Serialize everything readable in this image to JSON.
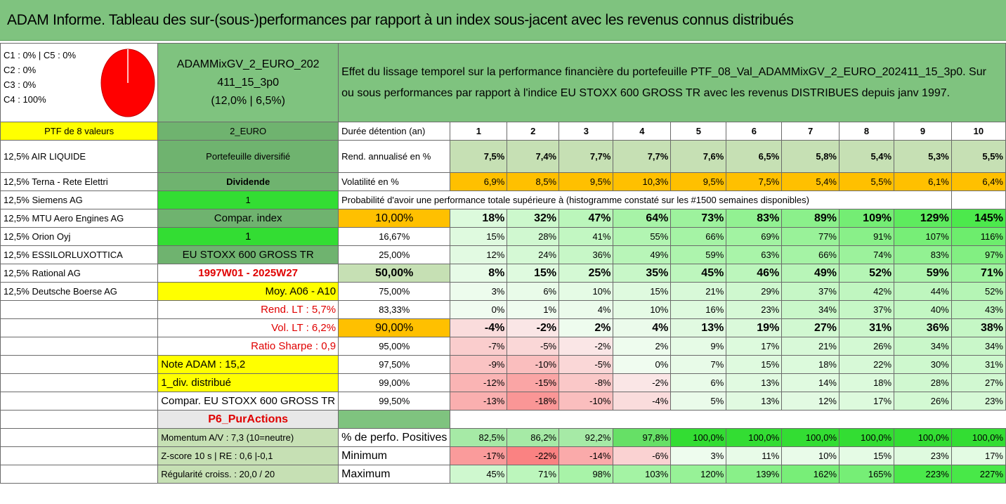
{
  "title": "ADAM Informe. Tableau des sur-(sous-)performances par rapport à un index sous-jacent avec les revenus connus distribués",
  "allocation": {
    "lines": [
      "C1 : 0% | C5 : 0%",
      "C2 : 0%",
      "C3 : 0%",
      "C4 : 100%"
    ],
    "pie_color": "#ff0000"
  },
  "fund": {
    "name_line1": "ADAMMixGV_2_EURO_202",
    "name_line2": "411_15_3p0",
    "ratios": "(12,0% | 6,5%)"
  },
  "description_line1": "Effet du lissage temporel sur la performance financière du portefeuille PTF_08_Val_ADAMMixGV_2_EURO_202411_15_3p0. Sur",
  "description_line2": "ou sous performances par rapport à l'indice EU STOXX 600 GROSS TR avec les revenus DISTRIBUES depuis janv 1997.",
  "holdings": {
    "header": "PTF de 8 valeurs",
    "items": [
      "12,5% AIR LIQUIDE",
      "12,5% Terna - Rete Elettri",
      "12,5% Siemens AG",
      "12,5% MTU Aero Engines AG",
      "12,5% Orion Oyj",
      "12,5% ESSILORLUXOTTICA",
      "12,5% Rational AG",
      "12,5% Deutsche Boerse AG"
    ]
  },
  "info": {
    "currency": "2_EURO",
    "type": "Portefeuille diversifié",
    "dividend": "Dividende",
    "val1": "1",
    "compar_index": "Compar. index",
    "val2": "1",
    "index_name": "EU STOXX 600 GROSS TR",
    "period": "1997W01 - 2025W27",
    "moy": "Moy. A06 - A10",
    "rend_lt": "Rend. LT : 5,7%",
    "vol_lt": "Vol. LT : 6,2%",
    "sharpe": "Ratio Sharpe : 0,9",
    "note": "Note ADAM : 15,2",
    "div": "1_div. distribué",
    "compar_full": "Compar. EU STOXX 600 GROSS TR",
    "p6": "P6_PurActions",
    "momentum": "Momentum A/V : 7,3 (10=neutre)",
    "zscore": "Z-score 10 s | RE : 0,6 |-0,1",
    "regularite": "Régularité croiss. : 20,0 / 20"
  },
  "years_label": "Durée détention (an)",
  "years": [
    "1",
    "2",
    "3",
    "4",
    "5",
    "6",
    "7",
    "8",
    "9",
    "10"
  ],
  "rend": {
    "label": "Rend. annualisé en %",
    "values": [
      "7,5%",
      "7,4%",
      "7,7%",
      "7,7%",
      "7,6%",
      "6,5%",
      "5,8%",
      "5,4%",
      "5,3%",
      "5,5%"
    ]
  },
  "vol": {
    "label": "Volatilité en %",
    "values": [
      "6,9%",
      "8,5%",
      "9,5%",
      "10,3%",
      "9,5%",
      "7,5%",
      "5,4%",
      "5,5%",
      "6,1%",
      "6,4%"
    ]
  },
  "prob_title": "Probabilité d'avoir une performance totale supérieure à (histogramme constaté sur les #1500 semaines disponibles)",
  "prob_rows": [
    {
      "p": "10,00%",
      "values": [
        "18%",
        "32%",
        "47%",
        "64%",
        "73%",
        "83%",
        "89%",
        "109%",
        "129%",
        "145%"
      ]
    },
    {
      "p": "16,67%",
      "values": [
        "15%",
        "28%",
        "41%",
        "55%",
        "66%",
        "69%",
        "77%",
        "91%",
        "107%",
        "116%"
      ]
    },
    {
      "p": "25,00%",
      "values": [
        "12%",
        "24%",
        "36%",
        "49%",
        "59%",
        "63%",
        "66%",
        "74%",
        "83%",
        "97%"
      ]
    },
    {
      "p": "50,00%",
      "values": [
        "8%",
        "15%",
        "25%",
        "35%",
        "45%",
        "46%",
        "49%",
        "52%",
        "59%",
        "71%"
      ]
    },
    {
      "p": "75,00%",
      "values": [
        "3%",
        "6%",
        "10%",
        "15%",
        "21%",
        "29%",
        "37%",
        "42%",
        "44%",
        "52%"
      ]
    },
    {
      "p": "83,33%",
      "values": [
        "0%",
        "1%",
        "4%",
        "10%",
        "16%",
        "23%",
        "34%",
        "37%",
        "40%",
        "43%"
      ]
    },
    {
      "p": "90,00%",
      "values": [
        "-4%",
        "-2%",
        "2%",
        "4%",
        "13%",
        "19%",
        "27%",
        "31%",
        "36%",
        "38%"
      ]
    },
    {
      "p": "95,00%",
      "values": [
        "-7%",
        "-5%",
        "-2%",
        "2%",
        "9%",
        "17%",
        "21%",
        "26%",
        "34%",
        "34%"
      ]
    },
    {
      "p": "97,50%",
      "values": [
        "-9%",
        "-10%",
        "-5%",
        "0%",
        "7%",
        "15%",
        "18%",
        "22%",
        "30%",
        "31%"
      ]
    },
    {
      "p": "99,00%",
      "values": [
        "-12%",
        "-15%",
        "-8%",
        "-2%",
        "6%",
        "13%",
        "14%",
        "18%",
        "28%",
        "27%"
      ]
    },
    {
      "p": "99,50%",
      "values": [
        "-13%",
        "-18%",
        "-10%",
        "-4%",
        "5%",
        "13%",
        "12%",
        "17%",
        "26%",
        "23%"
      ]
    }
  ],
  "stats": [
    {
      "label": "% de perfo. Positives",
      "values": [
        "82,5%",
        "86,2%",
        "92,2%",
        "97,8%",
        "100,0%",
        "100,0%",
        "100,0%",
        "100,0%",
        "100,0%",
        "100,0%"
      ]
    },
    {
      "label": "Minimum",
      "values": [
        "-17%",
        "-22%",
        "-14%",
        "-6%",
        "3%",
        "11%",
        "10%",
        "15%",
        "23%",
        "17%"
      ]
    },
    {
      "label": "Maximum",
      "values": [
        "45%",
        "71%",
        "98%",
        "103%",
        "120%",
        "139%",
        "162%",
        "165%",
        "223%",
        "227%"
      ]
    }
  ]
}
